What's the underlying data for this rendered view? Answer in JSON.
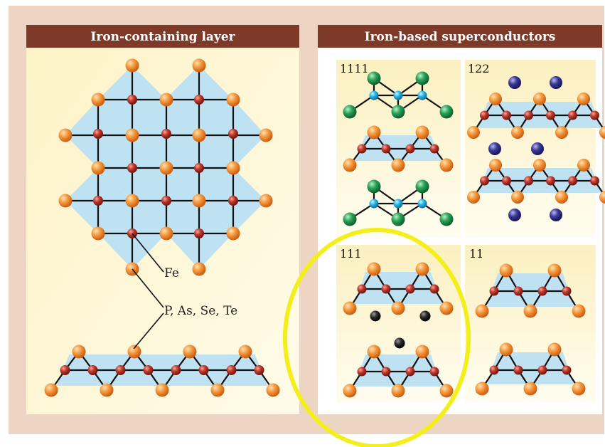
{
  "left_panel": {
    "title": "Iron-containing layer",
    "labels": {
      "fe": "Fe",
      "pnictogen": "P, As, Se, Te"
    }
  },
  "right_panel": {
    "title": "Iron-based superconductors",
    "structures": [
      {
        "id": "1111",
        "label": "1111"
      },
      {
        "id": "122",
        "label": "122"
      },
      {
        "id": "111",
        "label": "111",
        "highlighted": true
      },
      {
        "id": "11",
        "label": "11"
      }
    ]
  },
  "colors": {
    "background": "#ecd6c3",
    "header": "#7e3a28",
    "panel": "#fffbe0",
    "panel_top": "#fbf2c4",
    "tetrahedron": "#bfe2f2",
    "iron_atom": "#c0392b",
    "pnictogen_atom": "#f08a30",
    "green_atom": "#2aa45a",
    "cyan_atom": "#29b6e8",
    "blue_atom": "#3c3a9a",
    "black_atom": "#2a2a2a",
    "highlight_ring": "#f4ee1a"
  }
}
